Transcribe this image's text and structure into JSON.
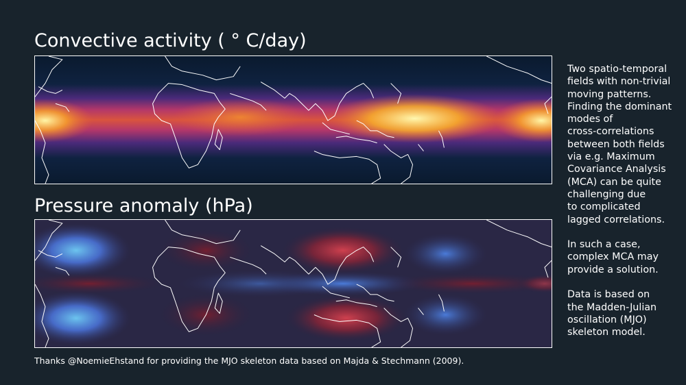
{
  "maps": [
    {
      "title": "Convective activity ( ° C/day)",
      "colormap": "inferno-like",
      "colors": [
        "#0a1a2e",
        "#3b1e6b",
        "#b0326a",
        "#f07c2a",
        "#fff5a0"
      ]
    },
    {
      "title": "Pressure anomaly (hPa)",
      "colormap": "diverging red-blue",
      "colors": [
        "#5fb8e8",
        "#3e4fc2",
        "#2a2440",
        "#7a1e2e",
        "#d0404e"
      ]
    }
  ],
  "description": {
    "paragraphs": [
      "Two spatio-temporal\nfields with non-trivial\nmoving patterns.\nFinding the dominant\nmodes of\ncross-correlations\nbetween both fields\nvia e.g. Maximum\nCovariance Analysis\n(MCA) can be quite\nchallenging due\nto complicated\nlagged correlations.",
      "In such a case,\ncomplex MCA may\nprovide a solution.",
      "Data is based on\nthe Madden-Julian\noscillation (MJO)\nskeleton model."
    ]
  },
  "footer": "Thanks @NoemieEhstand for providing the MJO skeleton data based on Majda & Stechmann (2009)."
}
